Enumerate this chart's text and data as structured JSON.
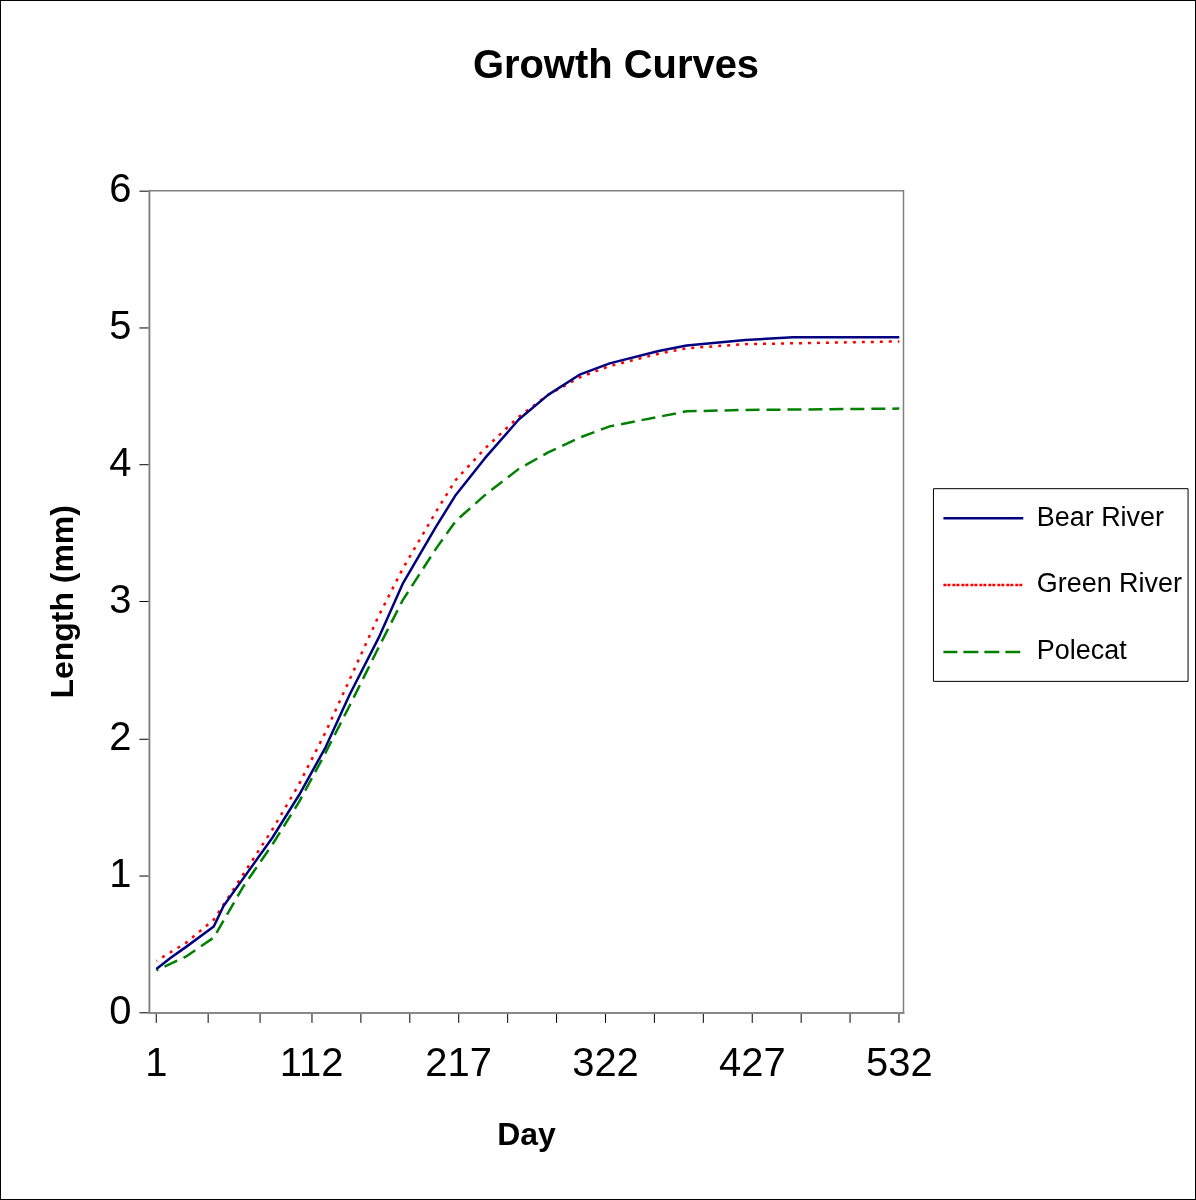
{
  "chart_data": {
    "type": "line",
    "title": "Growth Curves",
    "xlabel": "Day",
    "ylabel": "Length (mm)",
    "xlim": [
      -4,
      535
    ],
    "ylim": [
      0,
      6
    ],
    "xticks": [
      1,
      {
        "value": 38,
        "label": null
      },
      {
        "value": 75,
        "label": null
      },
      112,
      {
        "value": 147,
        "label": null
      },
      {
        "value": 182,
        "label": null
      },
      217,
      {
        "value": 252,
        "label": null
      },
      {
        "value": 287,
        "label": null
      },
      322,
      {
        "value": 357,
        "label": null
      },
      {
        "value": 392,
        "label": null
      },
      427,
      {
        "value": 462,
        "label": null
      },
      {
        "value": 497,
        "label": null
      },
      532
    ],
    "yticks": [
      0,
      1,
      2,
      3,
      4,
      5,
      6
    ],
    "grid": false,
    "legend": "right",
    "marker": "none",
    "series": [
      {
        "name": "Bear River",
        "color": "#000080",
        "line_style": "solid",
        "x": [
          1,
          11,
          22,
          42,
          49,
          63,
          84,
          103,
          122,
          139,
          160,
          177,
          201,
          215,
          236,
          260,
          281,
          304,
          325,
          360,
          380,
          422,
          456,
          532
        ],
        "values": [
          0.32,
          0.4,
          0.48,
          0.63,
          0.78,
          0.98,
          1.28,
          1.59,
          1.94,
          2.32,
          2.74,
          3.13,
          3.55,
          3.78,
          4.05,
          4.33,
          4.51,
          4.66,
          4.74,
          4.83,
          4.87,
          4.91,
          4.93,
          4.93
        ]
      },
      {
        "name": "Green River",
        "color": "#ff0000",
        "line_style": "dotted",
        "x": [
          1,
          22,
          42,
          63,
          84,
          103,
          122,
          139,
          160,
          177,
          201,
          215,
          236,
          260,
          281,
          304,
          325,
          360,
          380,
          422,
          532
        ],
        "values": [
          0.38,
          0.51,
          0.68,
          1.01,
          1.34,
          1.67,
          2.05,
          2.43,
          2.9,
          3.24,
          3.66,
          3.89,
          4.12,
          4.35,
          4.51,
          4.64,
          4.72,
          4.81,
          4.85,
          4.88,
          4.9
        ]
      },
      {
        "name": "Polecat",
        "color": "#008000",
        "line_style": "dashed",
        "x": [
          1,
          22,
          42,
          63,
          84,
          103,
          122,
          139,
          160,
          177,
          201,
          215,
          236,
          260,
          281,
          304,
          325,
          360,
          380,
          422,
          532
        ],
        "values": [
          0.31,
          0.41,
          0.55,
          0.92,
          1.23,
          1.54,
          1.9,
          2.24,
          2.67,
          3.01,
          3.39,
          3.59,
          3.78,
          3.97,
          4.09,
          4.2,
          4.28,
          4.35,
          4.39,
          4.4,
          4.41
        ]
      }
    ]
  }
}
